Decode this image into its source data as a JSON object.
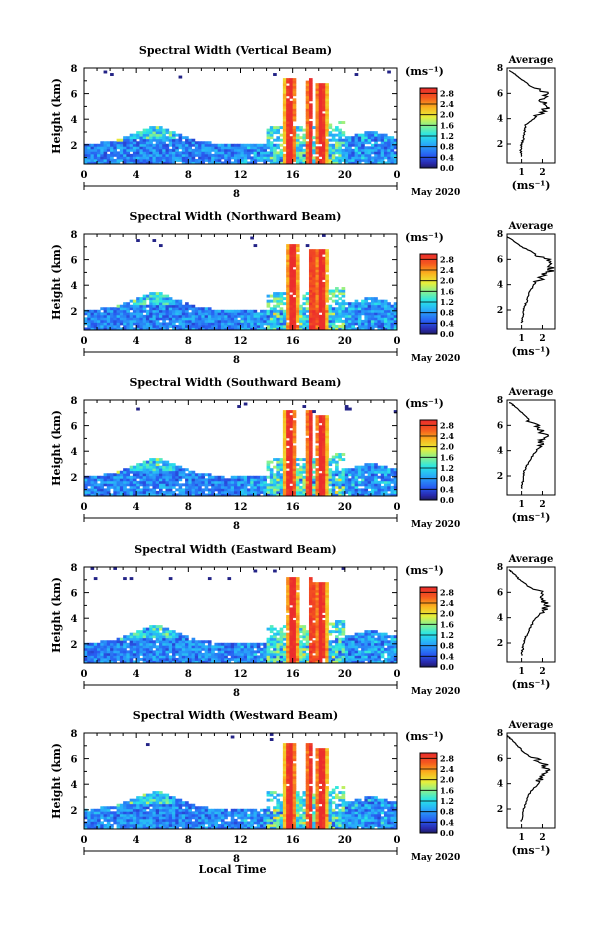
{
  "common": {
    "xlabel_shared": "Local Time",
    "height_label": "Height (km)",
    "date_label": "May 2020",
    "day_label": "8",
    "unit_label": "(ms⁻¹)",
    "avg_title": "Average",
    "avg_xlabel": "(ms⁻¹)"
  },
  "chart_data": [
    {
      "type": "heatmap",
      "title": "Spectral Width (Vertical Beam)",
      "xlabel": "",
      "ylabel": "Height (km)",
      "x_ticks": [
        "0",
        "4",
        "8",
        "12",
        "16",
        "20",
        "0"
      ],
      "x_tick_values": [
        0,
        4,
        8,
        12,
        16,
        20,
        24
      ],
      "xlim": [
        0,
        24
      ],
      "y_ticks": [
        "2",
        "4",
        "6",
        "8"
      ],
      "y_tick_values": [
        2,
        4,
        6,
        8
      ],
      "ylim": [
        0.5,
        8.0
      ],
      "colorbar_ticks": [
        "0.0",
        "0.4",
        "0.8",
        "1.2",
        "1.6",
        "2.0",
        "2.4",
        "2.8"
      ],
      "colorbar_range": [
        0.0,
        3.0
      ],
      "profile": {
        "title": "Average",
        "xlabel": "(ms⁻¹)",
        "x_ticks": [
          "1",
          "2"
        ],
        "x_tick_values": [
          1,
          2
        ],
        "y_ticks": [
          "2",
          "4",
          "6",
          "8"
        ],
        "xlim": [
          0.3,
          2.6
        ],
        "ylim": [
          0.5,
          8.0
        ],
        "heights": [
          1.0,
          1.5,
          2.0,
          2.5,
          3.0,
          3.5,
          4.0,
          4.5,
          5.0,
          5.5,
          6.0,
          6.5,
          7.0,
          7.5,
          7.8
        ],
        "values": [
          1.0,
          0.95,
          1.0,
          1.1,
          1.15,
          1.2,
          1.6,
          2.0,
          2.2,
          1.9,
          2.3,
          1.5,
          1.1,
          0.7,
          0.4
        ]
      }
    },
    {
      "type": "heatmap",
      "title": "Spectral Width (Northward Beam)",
      "xlabel": "",
      "ylabel": "Height (km)",
      "x_ticks": [
        "0",
        "4",
        "8",
        "12",
        "16",
        "20",
        "0"
      ],
      "x_tick_values": [
        0,
        4,
        8,
        12,
        16,
        20,
        24
      ],
      "xlim": [
        0,
        24
      ],
      "y_ticks": [
        "2",
        "4",
        "6",
        "8"
      ],
      "y_tick_values": [
        2,
        4,
        6,
        8
      ],
      "ylim": [
        0.5,
        8.0
      ],
      "colorbar_ticks": [
        "0.0",
        "0.4",
        "0.8",
        "1.2",
        "1.6",
        "2.0",
        "2.4",
        "2.8"
      ],
      "colorbar_range": [
        0.0,
        3.0
      ],
      "profile": {
        "title": "Average",
        "xlabel": "(ms⁻¹)",
        "x_ticks": [
          "1",
          "2"
        ],
        "x_tick_values": [
          1,
          2
        ],
        "y_ticks": [
          "2",
          "4",
          "6",
          "8"
        ],
        "xlim": [
          0.3,
          2.6
        ],
        "ylim": [
          0.5,
          8.0
        ],
        "heights": [
          1.0,
          1.5,
          2.0,
          2.5,
          3.0,
          3.5,
          4.0,
          4.5,
          5.0,
          5.5,
          6.0,
          6.5,
          7.0,
          7.5,
          7.8
        ],
        "values": [
          1.0,
          1.05,
          1.1,
          1.2,
          1.3,
          1.4,
          1.6,
          1.9,
          2.3,
          2.5,
          2.2,
          1.6,
          1.0,
          0.6,
          0.3
        ]
      }
    },
    {
      "type": "heatmap",
      "title": "Spectral Width (Southward Beam)",
      "xlabel": "",
      "ylabel": "Height (km)",
      "x_ticks": [
        "0",
        "4",
        "8",
        "12",
        "16",
        "20",
        "0"
      ],
      "x_tick_values": [
        0,
        4,
        8,
        12,
        16,
        20,
        24
      ],
      "xlim": [
        0,
        24
      ],
      "y_ticks": [
        "2",
        "4",
        "6",
        "8"
      ],
      "y_tick_values": [
        2,
        4,
        6,
        8
      ],
      "ylim": [
        0.5,
        8.0
      ],
      "colorbar_ticks": [
        "0.0",
        "0.4",
        "0.8",
        "1.2",
        "1.6",
        "2.0",
        "2.4",
        "2.8"
      ],
      "colorbar_range": [
        0.0,
        3.0
      ],
      "profile": {
        "title": "Average",
        "xlabel": "(ms⁻¹)",
        "x_ticks": [
          "1",
          "2"
        ],
        "x_tick_values": [
          1,
          2
        ],
        "y_ticks": [
          "2",
          "4",
          "6",
          "8"
        ],
        "xlim": [
          0.3,
          2.6
        ],
        "ylim": [
          0.5,
          8.0
        ],
        "heights": [
          1.0,
          1.5,
          2.0,
          2.5,
          3.0,
          3.5,
          4.0,
          4.5,
          5.0,
          5.5,
          6.0,
          6.5,
          7.0,
          7.5,
          7.8
        ],
        "values": [
          1.0,
          1.05,
          1.1,
          1.15,
          1.3,
          1.5,
          1.7,
          1.9,
          2.1,
          2.0,
          1.7,
          1.3,
          1.0,
          0.7,
          0.4
        ]
      }
    },
    {
      "type": "heatmap",
      "title": "Spectral Width (Eastward Beam)",
      "xlabel": "",
      "ylabel": "Height (km)",
      "x_ticks": [
        "0",
        "4",
        "8",
        "12",
        "16",
        "20",
        "0"
      ],
      "x_tick_values": [
        0,
        4,
        8,
        12,
        16,
        20,
        24
      ],
      "xlim": [
        0,
        24
      ],
      "y_ticks": [
        "2",
        "4",
        "6",
        "8"
      ],
      "y_tick_values": [
        2,
        4,
        6,
        8
      ],
      "ylim": [
        0.5,
        8.0
      ],
      "colorbar_ticks": [
        "0.0",
        "0.4",
        "0.8",
        "1.2",
        "1.6",
        "2.0",
        "2.4",
        "2.8"
      ],
      "colorbar_range": [
        0.0,
        3.0
      ],
      "profile": {
        "title": "Average",
        "xlabel": "(ms⁻¹)",
        "x_ticks": [
          "1",
          "2"
        ],
        "x_tick_values": [
          1,
          2
        ],
        "y_ticks": [
          "2",
          "4",
          "6",
          "8"
        ],
        "xlim": [
          0.3,
          2.6
        ],
        "ylim": [
          0.5,
          8.0
        ],
        "heights": [
          1.0,
          1.5,
          2.0,
          2.5,
          3.0,
          3.5,
          4.0,
          4.5,
          5.0,
          5.5,
          6.0,
          6.5,
          7.0,
          7.5,
          7.8
        ],
        "values": [
          1.0,
          1.05,
          1.1,
          1.2,
          1.35,
          1.5,
          1.7,
          2.0,
          2.2,
          2.1,
          1.9,
          1.3,
          0.9,
          0.6,
          0.4
        ]
      }
    },
    {
      "type": "heatmap",
      "title": "Spectral Width (Westward Beam)",
      "xlabel": "Local Time",
      "ylabel": "Height (km)",
      "x_ticks": [
        "0",
        "4",
        "8",
        "12",
        "16",
        "20",
        "0"
      ],
      "x_tick_values": [
        0,
        4,
        8,
        12,
        16,
        20,
        24
      ],
      "xlim": [
        0,
        24
      ],
      "y_ticks": [
        "2",
        "4",
        "6",
        "8"
      ],
      "y_tick_values": [
        2,
        4,
        6,
        8
      ],
      "ylim": [
        0.5,
        8.0
      ],
      "colorbar_ticks": [
        "0.0",
        "0.4",
        "0.8",
        "1.2",
        "1.6",
        "2.0",
        "2.4",
        "2.8"
      ],
      "colorbar_range": [
        0.0,
        3.0
      ],
      "profile": {
        "title": "Average",
        "xlabel": "(ms⁻¹)",
        "x_ticks": [
          "1",
          "2"
        ],
        "x_tick_values": [
          1,
          2
        ],
        "y_ticks": [
          "2",
          "4",
          "6",
          "8"
        ],
        "xlim": [
          0.3,
          2.6
        ],
        "ylim": [
          0.5,
          8.0
        ],
        "heights": [
          1.0,
          1.5,
          2.0,
          2.5,
          3.0,
          3.5,
          4.0,
          4.5,
          5.0,
          5.5,
          6.0,
          6.5,
          7.0,
          7.5,
          7.8
        ],
        "values": [
          1.0,
          1.05,
          1.1,
          1.2,
          1.3,
          1.5,
          1.8,
          2.0,
          2.3,
          2.1,
          1.6,
          1.1,
          0.8,
          0.5,
          0.3
        ]
      }
    }
  ]
}
